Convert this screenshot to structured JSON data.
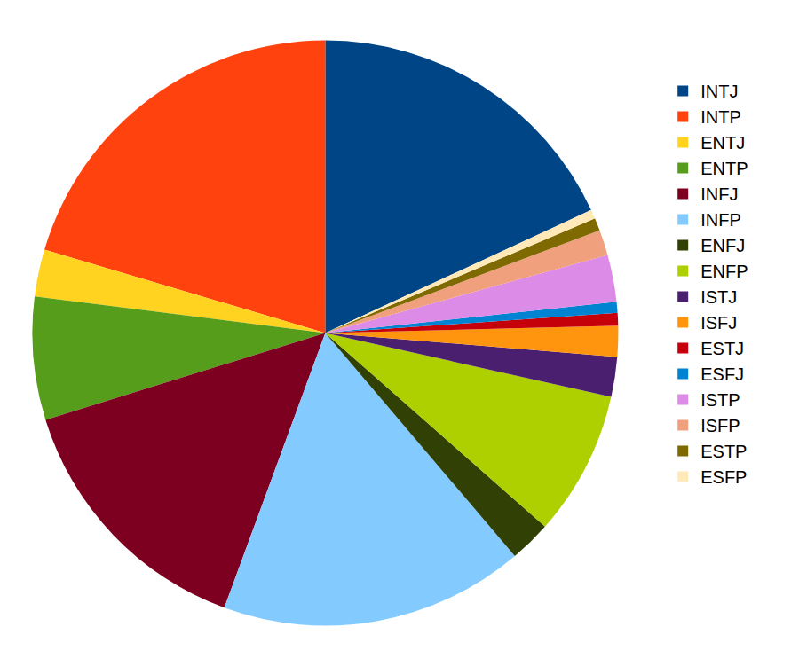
{
  "chart_data": {
    "type": "pie",
    "categories": [
      "INTJ",
      "INTP",
      "ENTJ",
      "ENTP",
      "INFJ",
      "INFP",
      "ENFJ",
      "ENFP",
      "ISTJ",
      "ISFJ",
      "ESTJ",
      "ESFJ",
      "ISTP",
      "ISFP",
      "ESTP",
      "ESFP"
    ],
    "values": [
      18.1,
      20.4,
      2.6,
      6.8,
      14.6,
      16.8,
      2.3,
      8.0,
      2.2,
      1.7,
      0.7,
      0.6,
      2.6,
      1.4,
      0.7,
      0.5
    ],
    "colors": [
      "#004586",
      "#ff420e",
      "#ffd320",
      "#579d1c",
      "#7e0021",
      "#83caff",
      "#314004",
      "#aecf00",
      "#4b1f6f",
      "#ff950e",
      "#c5000b",
      "#0084d1",
      "#dc8ce6",
      "#f0a07c",
      "#7e6a00",
      "#ffe9b8"
    ],
    "legend": "right",
    "data_labels": false
  }
}
